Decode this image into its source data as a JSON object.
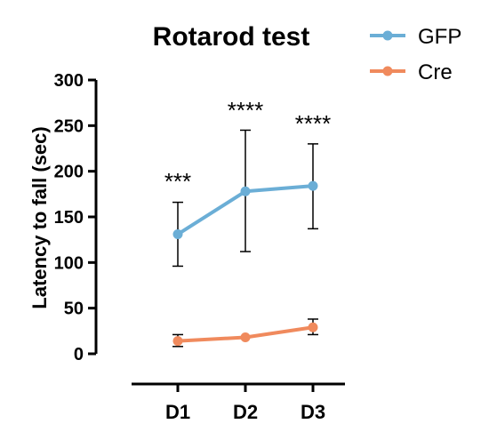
{
  "chart_data": {
    "type": "line",
    "title": "Rotarod test",
    "xlabel": "",
    "ylabel": "Latency to fall (sec)",
    "categories": [
      "D1",
      "D2",
      "D3"
    ],
    "ylim": [
      0,
      300
    ],
    "yticks": [
      0,
      50,
      100,
      150,
      200,
      250,
      300
    ],
    "legend_position": "top-right",
    "grid": false,
    "series": [
      {
        "name": "GFP",
        "color": "#6BAED6",
        "values": [
          131,
          178,
          184
        ],
        "error_low": [
          96,
          112,
          137
        ],
        "error_high": [
          166,
          245,
          230
        ]
      },
      {
        "name": "Cre",
        "color": "#F08A5D",
        "values": [
          14,
          18,
          29
        ],
        "error_low": [
          8,
          18,
          21
        ],
        "error_high": [
          21,
          18,
          38
        ]
      }
    ],
    "annotations": [
      "***",
      "****",
      "****"
    ]
  }
}
